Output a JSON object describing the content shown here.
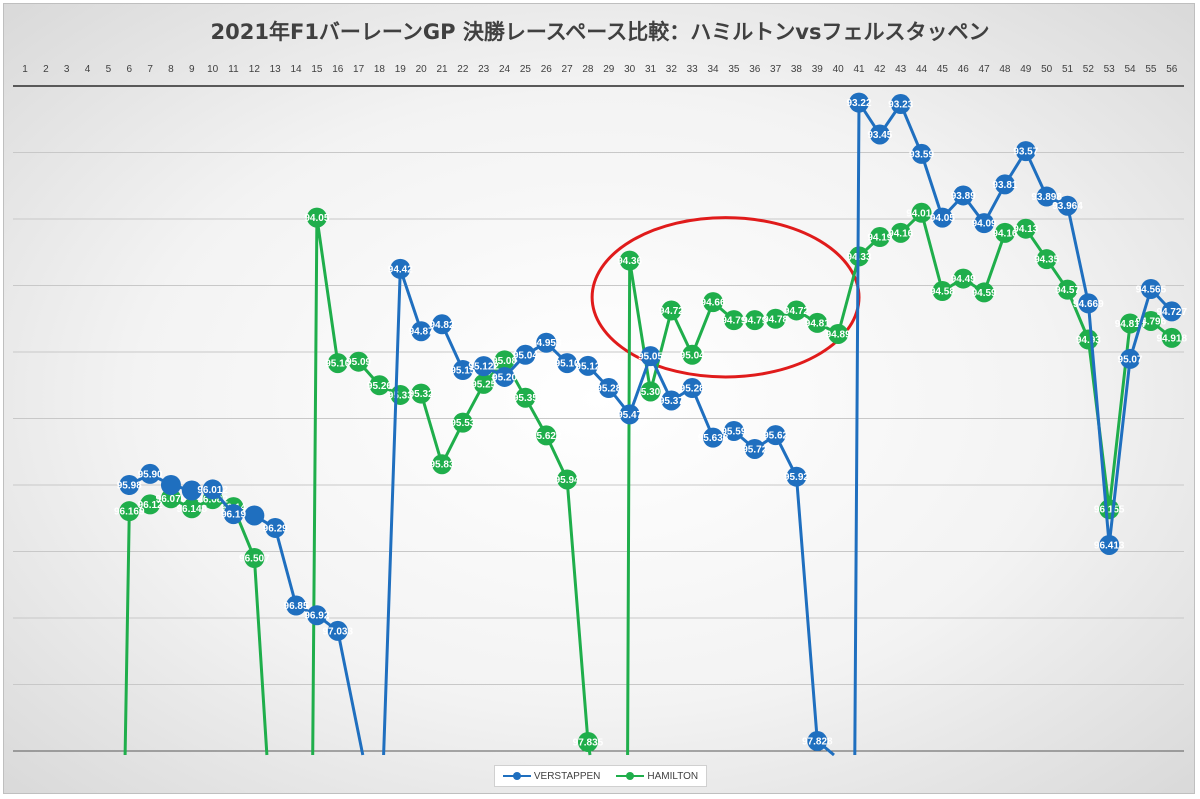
{
  "chart_data": {
    "type": "line",
    "title": "2021年F1バーレーンGP 決勝レースペース比較：ハミルトンvsフェルスタッペン",
    "x_ticks": [
      1,
      2,
      3,
      4,
      5,
      6,
      7,
      8,
      9,
      10,
      11,
      12,
      13,
      14,
      15,
      16,
      17,
      18,
      19,
      20,
      21,
      22,
      23,
      24,
      25,
      26,
      27,
      28,
      29,
      30,
      31,
      32,
      33,
      34,
      35,
      36,
      37,
      38,
      39,
      40,
      41,
      42,
      43,
      44,
      45,
      46,
      47,
      48,
      49,
      50,
      51,
      52,
      53,
      54,
      55,
      56
    ],
    "x_axis_position": "top",
    "y_axis": "reversed, no tick labels",
    "ylim": [
      97.9,
      93.1
    ],
    "grid": "horizontal",
    "legend_position": "bottom",
    "series": [
      {
        "name": "VERSTAPPEN",
        "color": "#1f6fbf",
        "points": [
          {
            "x": 6,
            "y": 95.98,
            "label": "95.98"
          },
          {
            "x": 7,
            "y": 95.9,
            "label": "95.90"
          },
          {
            "x": 8,
            "y": 95.98,
            "label": ""
          },
          {
            "x": 9,
            "y": 96.02,
            "label": ""
          },
          {
            "x": 10,
            "y": 96.012,
            "label": "96.012"
          },
          {
            "x": 11,
            "y": 96.19,
            "label": "96.19"
          },
          {
            "x": 12,
            "y": 96.2,
            "label": ""
          },
          {
            "x": 13,
            "y": 96.29,
            "label": "96.29"
          },
          {
            "x": 14,
            "y": 96.85,
            "label": "96.85"
          },
          {
            "x": 15,
            "y": 96.92,
            "label": "96.92"
          },
          {
            "x": 16,
            "y": 97.033,
            "label": "97.033"
          },
          {
            "x": 19,
            "y": 94.42,
            "label": "94.42"
          },
          {
            "x": 20,
            "y": 94.87,
            "label": "94.87"
          },
          {
            "x": 21,
            "y": 94.82,
            "label": "94.82"
          },
          {
            "x": 22,
            "y": 95.15,
            "label": "95.15"
          },
          {
            "x": 23,
            "y": 95.122,
            "label": "95.122"
          },
          {
            "x": 24,
            "y": 95.2,
            "label": "95.20"
          },
          {
            "x": 25,
            "y": 95.04,
            "label": "95.04"
          },
          {
            "x": 26,
            "y": 94.953,
            "label": "94.953"
          },
          {
            "x": 27,
            "y": 95.1,
            "label": "95.10"
          },
          {
            "x": 28,
            "y": 95.12,
            "label": "95.12"
          },
          {
            "x": 29,
            "y": 95.28,
            "label": "95.28"
          },
          {
            "x": 30,
            "y": 95.47,
            "label": "95.47"
          },
          {
            "x": 31,
            "y": 95.05,
            "label": "95.05"
          },
          {
            "x": 32,
            "y": 95.37,
            "label": "95.37"
          },
          {
            "x": 33,
            "y": 95.28,
            "label": "95.28"
          },
          {
            "x": 34,
            "y": 95.638,
            "label": "95.638"
          },
          {
            "x": 35,
            "y": 95.59,
            "label": "95.59"
          },
          {
            "x": 36,
            "y": 95.72,
            "label": "95.72"
          },
          {
            "x": 37,
            "y": 95.62,
            "label": "95.62"
          },
          {
            "x": 38,
            "y": 95.92,
            "label": "95.92"
          },
          {
            "x": 39,
            "y": 97.828,
            "label": "97.828"
          },
          {
            "x": 41,
            "y": 93.22,
            "label": "93.22"
          },
          {
            "x": 42,
            "y": 93.45,
            "label": "93.45"
          },
          {
            "x": 43,
            "y": 93.23,
            "label": "93.23"
          },
          {
            "x": 44,
            "y": 93.59,
            "label": "93.59"
          },
          {
            "x": 45,
            "y": 94.05,
            "label": "94.05"
          },
          {
            "x": 46,
            "y": 93.89,
            "label": "93.89"
          },
          {
            "x": 47,
            "y": 94.09,
            "label": "94.09"
          },
          {
            "x": 48,
            "y": 93.81,
            "label": "93.81"
          },
          {
            "x": 49,
            "y": 93.57,
            "label": "93.57"
          },
          {
            "x": 50,
            "y": 93.898,
            "label": "93.898"
          },
          {
            "x": 51,
            "y": 93.964,
            "label": "93.964"
          },
          {
            "x": 52,
            "y": 94.669,
            "label": "94.669"
          },
          {
            "x": 53,
            "y": 96.413,
            "label": "96.413"
          },
          {
            "x": 54,
            "y": 95.07,
            "label": "95.07"
          },
          {
            "x": 55,
            "y": 94.565,
            "label": "94.565"
          },
          {
            "x": 56,
            "y": 94.727,
            "label": "94.727"
          }
        ]
      },
      {
        "name": "HAMILTON",
        "color": "#1fae4b",
        "points": [
          {
            "x": 6,
            "y": 96.169,
            "label": "96.169"
          },
          {
            "x": 7,
            "y": 96.12,
            "label": "96.12"
          },
          {
            "x": 8,
            "y": 96.076,
            "label": "96.076"
          },
          {
            "x": 9,
            "y": 96.148,
            "label": "96.148"
          },
          {
            "x": 10,
            "y": 96.082,
            "label": "96.082"
          },
          {
            "x": 11,
            "y": 96.14,
            "label": "96.14"
          },
          {
            "x": 12,
            "y": 96.507,
            "label": "96.507"
          },
          {
            "x": 15,
            "y": 94.05,
            "label": "94.05"
          },
          {
            "x": 16,
            "y": 95.1,
            "label": "95.10"
          },
          {
            "x": 17,
            "y": 95.09,
            "label": "95.09"
          },
          {
            "x": 18,
            "y": 95.26,
            "label": "95.26"
          },
          {
            "x": 19,
            "y": 95.33,
            "label": "95.33"
          },
          {
            "x": 20,
            "y": 95.32,
            "label": "95.32"
          },
          {
            "x": 21,
            "y": 95.83,
            "label": "95.83"
          },
          {
            "x": 22,
            "y": 95.53,
            "label": "95.53"
          },
          {
            "x": 23,
            "y": 95.25,
            "label": "95.25"
          },
          {
            "x": 24,
            "y": 95.08,
            "label": "95.08"
          },
          {
            "x": 25,
            "y": 95.35,
            "label": "95.35"
          },
          {
            "x": 26,
            "y": 95.622,
            "label": "95.622"
          },
          {
            "x": 27,
            "y": 95.94,
            "label": "95.94"
          },
          {
            "x": 28,
            "y": 97.835,
            "label": "97.835"
          },
          {
            "x": 30,
            "y": 94.36,
            "label": "94.36"
          },
          {
            "x": 31,
            "y": 95.305,
            "label": "95.305"
          },
          {
            "x": 32,
            "y": 94.72,
            "label": "94.72"
          },
          {
            "x": 33,
            "y": 95.04,
            "label": "95.04"
          },
          {
            "x": 34,
            "y": 94.66,
            "label": "94.66"
          },
          {
            "x": 35,
            "y": 94.79,
            "label": "94.79"
          },
          {
            "x": 36,
            "y": 94.79,
            "label": "94.79"
          },
          {
            "x": 37,
            "y": 94.78,
            "label": "94.78"
          },
          {
            "x": 38,
            "y": 94.72,
            "label": "94.72"
          },
          {
            "x": 39,
            "y": 94.81,
            "label": "94.81"
          },
          {
            "x": 40,
            "y": 94.89,
            "label": "94.89"
          },
          {
            "x": 41,
            "y": 94.33,
            "label": "94.33"
          },
          {
            "x": 42,
            "y": 94.19,
            "label": "94.19"
          },
          {
            "x": 43,
            "y": 94.16,
            "label": "94.16"
          },
          {
            "x": 44,
            "y": 94.015,
            "label": "94.015"
          },
          {
            "x": 45,
            "y": 94.58,
            "label": "94.58"
          },
          {
            "x": 46,
            "y": 94.49,
            "label": "94.49"
          },
          {
            "x": 47,
            "y": 94.59,
            "label": "94.59"
          },
          {
            "x": 48,
            "y": 94.16,
            "label": "94.16"
          },
          {
            "x": 49,
            "y": 94.13,
            "label": "94.13"
          },
          {
            "x": 50,
            "y": 94.35,
            "label": "94.35"
          },
          {
            "x": 51,
            "y": 94.57,
            "label": "94.57"
          },
          {
            "x": 52,
            "y": 94.93,
            "label": "94.93"
          },
          {
            "x": 53,
            "y": 96.155,
            "label": "96.155"
          },
          {
            "x": 54,
            "y": 94.814,
            "label": "94.814"
          },
          {
            "x": 55,
            "y": 94.796,
            "label": "94.796"
          },
          {
            "x": 56,
            "y": 94.918,
            "label": "94.918"
          }
        ]
      }
    ],
    "drops_to_floor": {
      "VERSTAPPEN": [
        [
          16,
          17.2
        ],
        [
          18.2,
          19
        ],
        [
          39,
          39.8
        ],
        [
          40.8,
          41
        ],
        [
          52,
          53
        ]
      ],
      "HAMILTON": [
        [
          5.8,
          6
        ],
        [
          12,
          12.6
        ],
        [
          14.8,
          15
        ],
        [
          28,
          28.1
        ],
        [
          29.9,
          30
        ]
      ]
    },
    "annotation": {
      "shape": "ellipse",
      "color": "#e01b1b",
      "x_range": [
        28.2,
        41
      ],
      "y_range": [
        94.05,
        95.2
      ]
    }
  }
}
